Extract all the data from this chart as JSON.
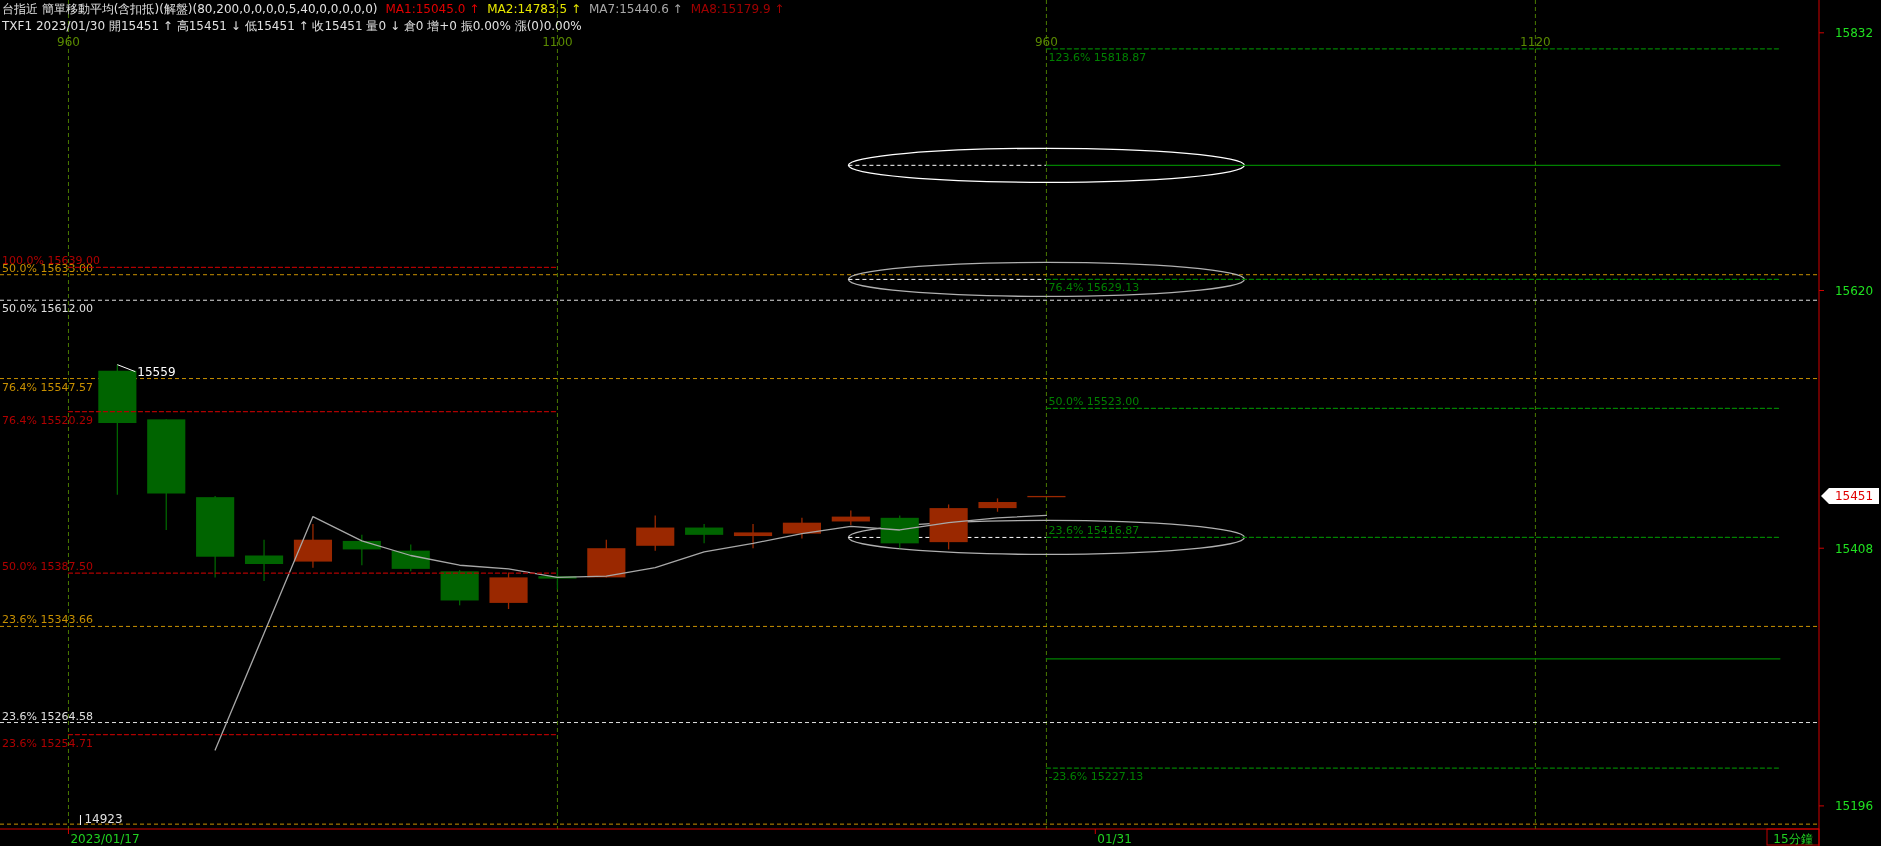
{
  "chart_data": {
    "type": "candlestick",
    "title": "台指近 簡單移動平均(含扣抵)(解盤)(80,200,0,0,0,0,5,40,0,0,0,0,0)",
    "subtitle": "TXF1 2023/01/30 開15451 ↑ 高15451 ↓ 低15451 ↑ 收15451 量0 ↓ 倉0 增+0 振0.00% 漲(0)0.00%",
    "categories": [
      "960",
      null,
      null,
      null,
      null,
      null,
      null,
      null,
      null,
      null,
      "1100",
      null,
      null,
      null,
      null,
      null,
      null,
      null,
      null,
      null,
      "960",
      null,
      null,
      null,
      null,
      null,
      null,
      null,
      null,
      null,
      "1120",
      null,
      null,
      null,
      null,
      null
    ],
    "ohlc": [
      null,
      [
        15554,
        15559,
        15452,
        15511
      ],
      [
        15514,
        15514,
        15423,
        15453
      ],
      [
        15450,
        15451,
        15384,
        15401
      ],
      [
        15402,
        15415,
        15381,
        15395
      ],
      [
        15397,
        15428,
        15392,
        15415
      ],
      [
        15414,
        15419,
        15394,
        15407
      ],
      [
        15406,
        15411,
        15389,
        15391
      ],
      [
        15389,
        15390,
        15361,
        15365
      ],
      [
        15363,
        15388,
        15358,
        15384
      ],
      [
        15385,
        15391,
        15374,
        15383
      ],
      [
        15384,
        15415,
        15384,
        15408
      ],
      [
        15410,
        15435,
        15406,
        15425
      ],
      [
        15425,
        15428,
        15412,
        15419
      ],
      [
        15418,
        15428,
        15408,
        15421
      ],
      [
        15420,
        15433,
        15416,
        15429
      ],
      [
        15430,
        15439,
        15427,
        15434
      ],
      [
        15433,
        15435,
        15408,
        15412
      ],
      [
        15413,
        15444,
        15407,
        15441
      ],
      [
        15441,
        15449,
        15438,
        15446
      ],
      [
        15451,
        15451,
        15451,
        15451
      ],
      null,
      null,
      null,
      null,
      null,
      null,
      null,
      null,
      null,
      null,
      null,
      null,
      null,
      null,
      null
    ],
    "colors": [
      null,
      "#006400",
      "#006400",
      "#006400",
      "#006400",
      "#9a2800",
      "#006400",
      "#006400",
      "#006400",
      "#9a2800",
      "#006400",
      "#9a2800",
      "#9a2800",
      "#006400",
      "#9a2800",
      "#9a2800",
      "#9a2800",
      "#006400",
      "#9a2800",
      "#9a2800",
      "#9a2800",
      null,
      null,
      null,
      null,
      null,
      null,
      null,
      null,
      null,
      null,
      null,
      null,
      null,
      null,
      null
    ],
    "ylim": [
      15177,
      15859
    ],
    "yticks": [
      15832,
      15620,
      15408,
      15196
    ],
    "grid": "x",
    "legend": "top left",
    "series": [
      {
        "type": "line",
        "name": "MA1:15045.0 ↑",
        "color": "#e00000",
        "values": [
          null,
          null,
          null,
          null,
          null,
          null,
          null,
          null,
          null,
          null,
          null,
          null,
          null,
          null,
          null,
          null,
          null,
          null,
          null,
          null,
          null,
          null,
          null,
          null,
          null,
          null,
          null,
          null,
          null,
          null,
          null,
          null,
          null,
          null,
          null,
          null
        ]
      },
      {
        "type": "line",
        "name": "MA2:14783.5 ↑",
        "color": "#e8e800",
        "values": [
          null,
          null,
          null,
          null,
          null,
          null,
          null,
          null,
          null,
          null,
          null,
          null,
          null,
          null,
          null,
          null,
          null,
          null,
          null,
          null,
          null,
          null,
          null,
          null,
          null,
          null,
          null,
          null,
          null,
          null,
          null,
          null,
          null,
          null,
          null,
          null
        ]
      },
      {
        "type": "line",
        "name": "MA7:15440.6 ↑",
        "color": "#a8a8a8",
        "values": [
          null,
          null,
          null,
          15242,
          15338,
          15434,
          15414,
          15402,
          15394,
          15391,
          15384,
          15385,
          15392,
          15405,
          15412,
          15420,
          15426,
          15423,
          15429,
          15433,
          15435,
          null,
          null,
          null,
          null,
          null,
          null,
          null,
          null,
          null,
          null,
          null,
          null,
          null,
          null,
          null
        ]
      },
      {
        "type": "line",
        "name": "MA8:15179.9 ↑",
        "color": "#a00000",
        "values": [
          null,
          null,
          null,
          null,
          null,
          null,
          null,
          null,
          null,
          null,
          null,
          null,
          null,
          null,
          null,
          null,
          null,
          null,
          null,
          null,
          null,
          null,
          null,
          null,
          null,
          null,
          null,
          null,
          null,
          null,
          null,
          null,
          null,
          null,
          null,
          null
        ]
      },
      {
        "type": "line",
        "color": "#b00000",
        "line_style": "dashed",
        "values": [
          15639,
          15639,
          15639,
          15639,
          15639,
          15639,
          15639,
          15639,
          15639,
          15639,
          15639,
          null,
          null,
          null,
          null,
          null,
          null,
          null,
          null,
          null,
          null,
          null,
          null,
          null,
          null,
          null,
          null,
          null,
          null,
          null,
          null,
          null,
          null,
          null,
          null,
          null
        ]
      },
      {
        "type": "line",
        "color": "#b00000",
        "line_style": "dashed",
        "values": [
          15520.29,
          15520.29,
          15520.29,
          15520.29,
          15520.29,
          15520.29,
          15520.29,
          15520.29,
          15520.29,
          15520.29,
          15520.29,
          null,
          null,
          null,
          null,
          null,
          null,
          null,
          null,
          null,
          null,
          null,
          null,
          null,
          null,
          null,
          null,
          null,
          null,
          null,
          null,
          null,
          null,
          null,
          null,
          null
        ]
      },
      {
        "type": "line",
        "color": "#b00000",
        "line_style": "dashed",
        "values": [
          15387.5,
          15387.5,
          15387.5,
          15387.5,
          15387.5,
          15387.5,
          15387.5,
          15387.5,
          15387.5,
          15387.5,
          15387.5,
          null,
          null,
          null,
          null,
          null,
          null,
          null,
          null,
          null,
          null,
          null,
          null,
          null,
          null,
          null,
          null,
          null,
          null,
          null,
          null,
          null,
          null,
          null,
          null,
          null
        ]
      },
      {
        "type": "line",
        "color": "#b00000",
        "line_style": "dashed",
        "values": [
          15254.71,
          15254.71,
          15254.71,
          15254.71,
          15254.71,
          15254.71,
          15254.71,
          15254.71,
          15254.71,
          15254.71,
          15254.71,
          null,
          null,
          null,
          null,
          null,
          null,
          null,
          null,
          null,
          null,
          null,
          null,
          null,
          null,
          null,
          null,
          null,
          null,
          null,
          null,
          null,
          null,
          null,
          null,
          null
        ]
      },
      {
        "type": "line",
        "color": "#008000",
        "line_style": "dashed",
        "values": [
          null,
          null,
          null,
          null,
          null,
          null,
          null,
          null,
          null,
          null,
          null,
          null,
          null,
          null,
          null,
          null,
          null,
          null,
          null,
          null,
          15818.87,
          15818.87,
          15818.87,
          15818.87,
          15818.87,
          15818.87,
          15818.87,
          15818.87,
          15818.87,
          15818.87,
          15818.87,
          15818.87,
          15818.87,
          15818.87,
          15818.87,
          15818.87
        ]
      },
      {
        "type": "line",
        "color": "#008000",
        "line_style": "dashed",
        "values": [
          null,
          null,
          null,
          null,
          null,
          null,
          null,
          null,
          null,
          null,
          null,
          null,
          null,
          null,
          null,
          null,
          null,
          null,
          null,
          null,
          15629.13,
          15629.13,
          15629.13,
          15629.13,
          15629.13,
          15629.13,
          15629.13,
          15629.13,
          15629.13,
          15629.13,
          15629.13,
          15629.13,
          15629.13,
          15629.13,
          15629.13,
          15629.13
        ]
      },
      {
        "type": "line",
        "color": "#008000",
        "line_style": "dashed",
        "values": [
          null,
          null,
          null,
          null,
          null,
          null,
          null,
          null,
          null,
          null,
          null,
          null,
          null,
          null,
          null,
          null,
          null,
          null,
          null,
          null,
          15523,
          15523,
          15523,
          15523,
          15523,
          15523,
          15523,
          15523,
          15523,
          15523,
          15523,
          15523,
          15523,
          15523,
          15523,
          15523
        ]
      },
      {
        "type": "line",
        "color": "#008000",
        "line_style": "dashed",
        "values": [
          null,
          null,
          null,
          null,
          null,
          null,
          null,
          null,
          null,
          null,
          null,
          null,
          null,
          null,
          null,
          null,
          null,
          null,
          null,
          null,
          15416.87,
          15416.87,
          15416.87,
          15416.87,
          15416.87,
          15416.87,
          15416.87,
          15416.87,
          15416.87,
          15416.87,
          15416.87,
          15416.87,
          15416.87,
          15416.87,
          15416.87,
          15416.87
        ]
      },
      {
        "type": "line",
        "color": "#008000",
        "line_style": "dashed",
        "values": [
          null,
          null,
          null,
          null,
          null,
          null,
          null,
          null,
          null,
          null,
          null,
          null,
          null,
          null,
          null,
          null,
          null,
          null,
          null,
          null,
          15227.13,
          15227.13,
          15227.13,
          15227.13,
          15227.13,
          15227.13,
          15227.13,
          15227.13,
          15227.13,
          15227.13,
          15227.13,
          15227.13,
          15227.13,
          15227.13,
          15227.13,
          15227.13
        ]
      },
      {
        "type": "line",
        "color": "#008000",
        "line_style": "solid",
        "values": [
          null,
          null,
          null,
          null,
          null,
          null,
          null,
          null,
          null,
          null,
          null,
          null,
          null,
          null,
          null,
          null,
          null,
          null,
          null,
          null,
          15723,
          15723,
          15723,
          15723,
          15723,
          15723,
          15723,
          15723,
          15723,
          15723,
          15723,
          15723,
          15723,
          15723,
          15723,
          15723
        ]
      },
      {
        "type": "line",
        "color": "#008000",
        "line_style": "solid",
        "values": [
          null,
          null,
          null,
          null,
          null,
          null,
          null,
          null,
          null,
          null,
          null,
          null,
          null,
          null,
          null,
          null,
          null,
          null,
          null,
          null,
          15317,
          15317,
          15317,
          15317,
          15317,
          15317,
          15317,
          15317,
          15317,
          15317,
          15317,
          15317,
          15317,
          15317,
          15317,
          15317
        ]
      }
    ],
    "ref_lines": [
      {
        "axis": "y",
        "value": 15633,
        "label": "50.0% 15633.00",
        "color": "#c89000",
        "line_style": "dashed"
      },
      {
        "axis": "y",
        "value": 15612,
        "label": "50.0% 15612.00",
        "color": "#e0e0e0",
        "line_style": "dashed"
      },
      {
        "axis": "y",
        "value": 15547.57,
        "label": "76.4% 15547.57",
        "color": "#c89000",
        "line_style": "dashed"
      },
      {
        "axis": "y",
        "value": 15343.66,
        "label": "23.6% 15343.66",
        "color": "#c89000",
        "line_style": "dashed"
      },
      {
        "axis": "y",
        "value": 15264.58,
        "label": "23.6% 15264.58",
        "color": "#e0e0e0",
        "line_style": "dashed"
      },
      {
        "axis": "y",
        "value": 15181,
        "color": "#c89000",
        "line_style": "dashed"
      }
    ],
    "annotations": [
      "100.0% 15639.00",
      "76.4% 15520.29",
      "50.0% 15387.50",
      "23.6% 15254.71",
      "123.6% 15818.87",
      "76.4% 15629.13",
      "50.0% 15523.00",
      "23.6% 15416.87",
      "-23.6% 15227.13",
      "15559",
      "15451",
      "14923",
      "15分鐘",
      "2023/01/17",
      "01/31"
    ]
  }
}
